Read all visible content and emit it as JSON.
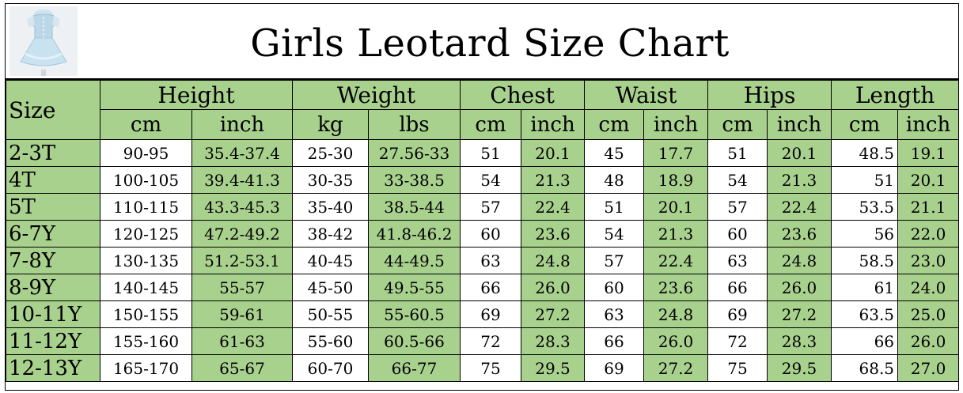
{
  "title": "Girls Leotard Size Chart",
  "thumbnail": {
    "icon": "leotard-dress-photo"
  },
  "colors": {
    "header_green": "#a9d18e",
    "white": "#ffffff",
    "border": "#000000"
  },
  "columns": {
    "size": "Size",
    "groups": [
      {
        "label": "Height",
        "units": [
          "cm",
          "inch"
        ]
      },
      {
        "label": "Weight",
        "units": [
          "kg",
          "lbs"
        ]
      },
      {
        "label": "Chest",
        "units": [
          "cm",
          "inch"
        ]
      },
      {
        "label": "Waist",
        "units": [
          "cm",
          "inch"
        ]
      },
      {
        "label": "Hips",
        "units": [
          "cm",
          "inch"
        ]
      },
      {
        "label": "Length",
        "units": [
          "cm",
          "inch"
        ]
      }
    ]
  },
  "rows": [
    {
      "size": "2-3T",
      "values": [
        "90-95",
        "35.4-37.4",
        "25-30",
        "27.56-33",
        "51",
        "20.1",
        "45",
        "17.7",
        "51",
        "20.1",
        "48.5",
        "19.1"
      ]
    },
    {
      "size": "4T",
      "values": [
        "100-105",
        "39.4-41.3",
        "30-35",
        "33-38.5",
        "54",
        "21.3",
        "48",
        "18.9",
        "54",
        "21.3",
        "51",
        "20.1"
      ]
    },
    {
      "size": "5T",
      "values": [
        "110-115",
        "43.3-45.3",
        "35-40",
        "38.5-44",
        "57",
        "22.4",
        "51",
        "20.1",
        "57",
        "22.4",
        "53.5",
        "21.1"
      ]
    },
    {
      "size": "6-7Y",
      "values": [
        "120-125",
        "47.2-49.2",
        "38-42",
        "41.8-46.2",
        "60",
        "23.6",
        "54",
        "21.3",
        "60",
        "23.6",
        "56",
        "22.0"
      ]
    },
    {
      "size": "7-8Y",
      "values": [
        "130-135",
        "51.2-53.1",
        "40-45",
        "44-49.5",
        "63",
        "24.8",
        "57",
        "22.4",
        "63",
        "24.8",
        "58.5",
        "23.0"
      ]
    },
    {
      "size": "8-9Y",
      "values": [
        "140-145",
        "55-57",
        "45-50",
        "49.5-55",
        "66",
        "26.0",
        "60",
        "23.6",
        "66",
        "26.0",
        "61",
        "24.0"
      ]
    },
    {
      "size": "10-11Y",
      "values": [
        "150-155",
        "59-61",
        "50-55",
        "55-60.5",
        "69",
        "27.2",
        "63",
        "24.8",
        "69",
        "27.2",
        "63.5",
        "25.0"
      ]
    },
    {
      "size": "11-12Y",
      "values": [
        "155-160",
        "61-63",
        "55-60",
        "60.5-66",
        "72",
        "28.3",
        "66",
        "26.0",
        "72",
        "28.3",
        "66",
        "26.0"
      ]
    },
    {
      "size": "12-13Y",
      "values": [
        "165-170",
        "65-67",
        "60-70",
        "66-77",
        "75",
        "29.5",
        "69",
        "27.2",
        "75",
        "29.5",
        "68.5",
        "27.0"
      ]
    }
  ]
}
